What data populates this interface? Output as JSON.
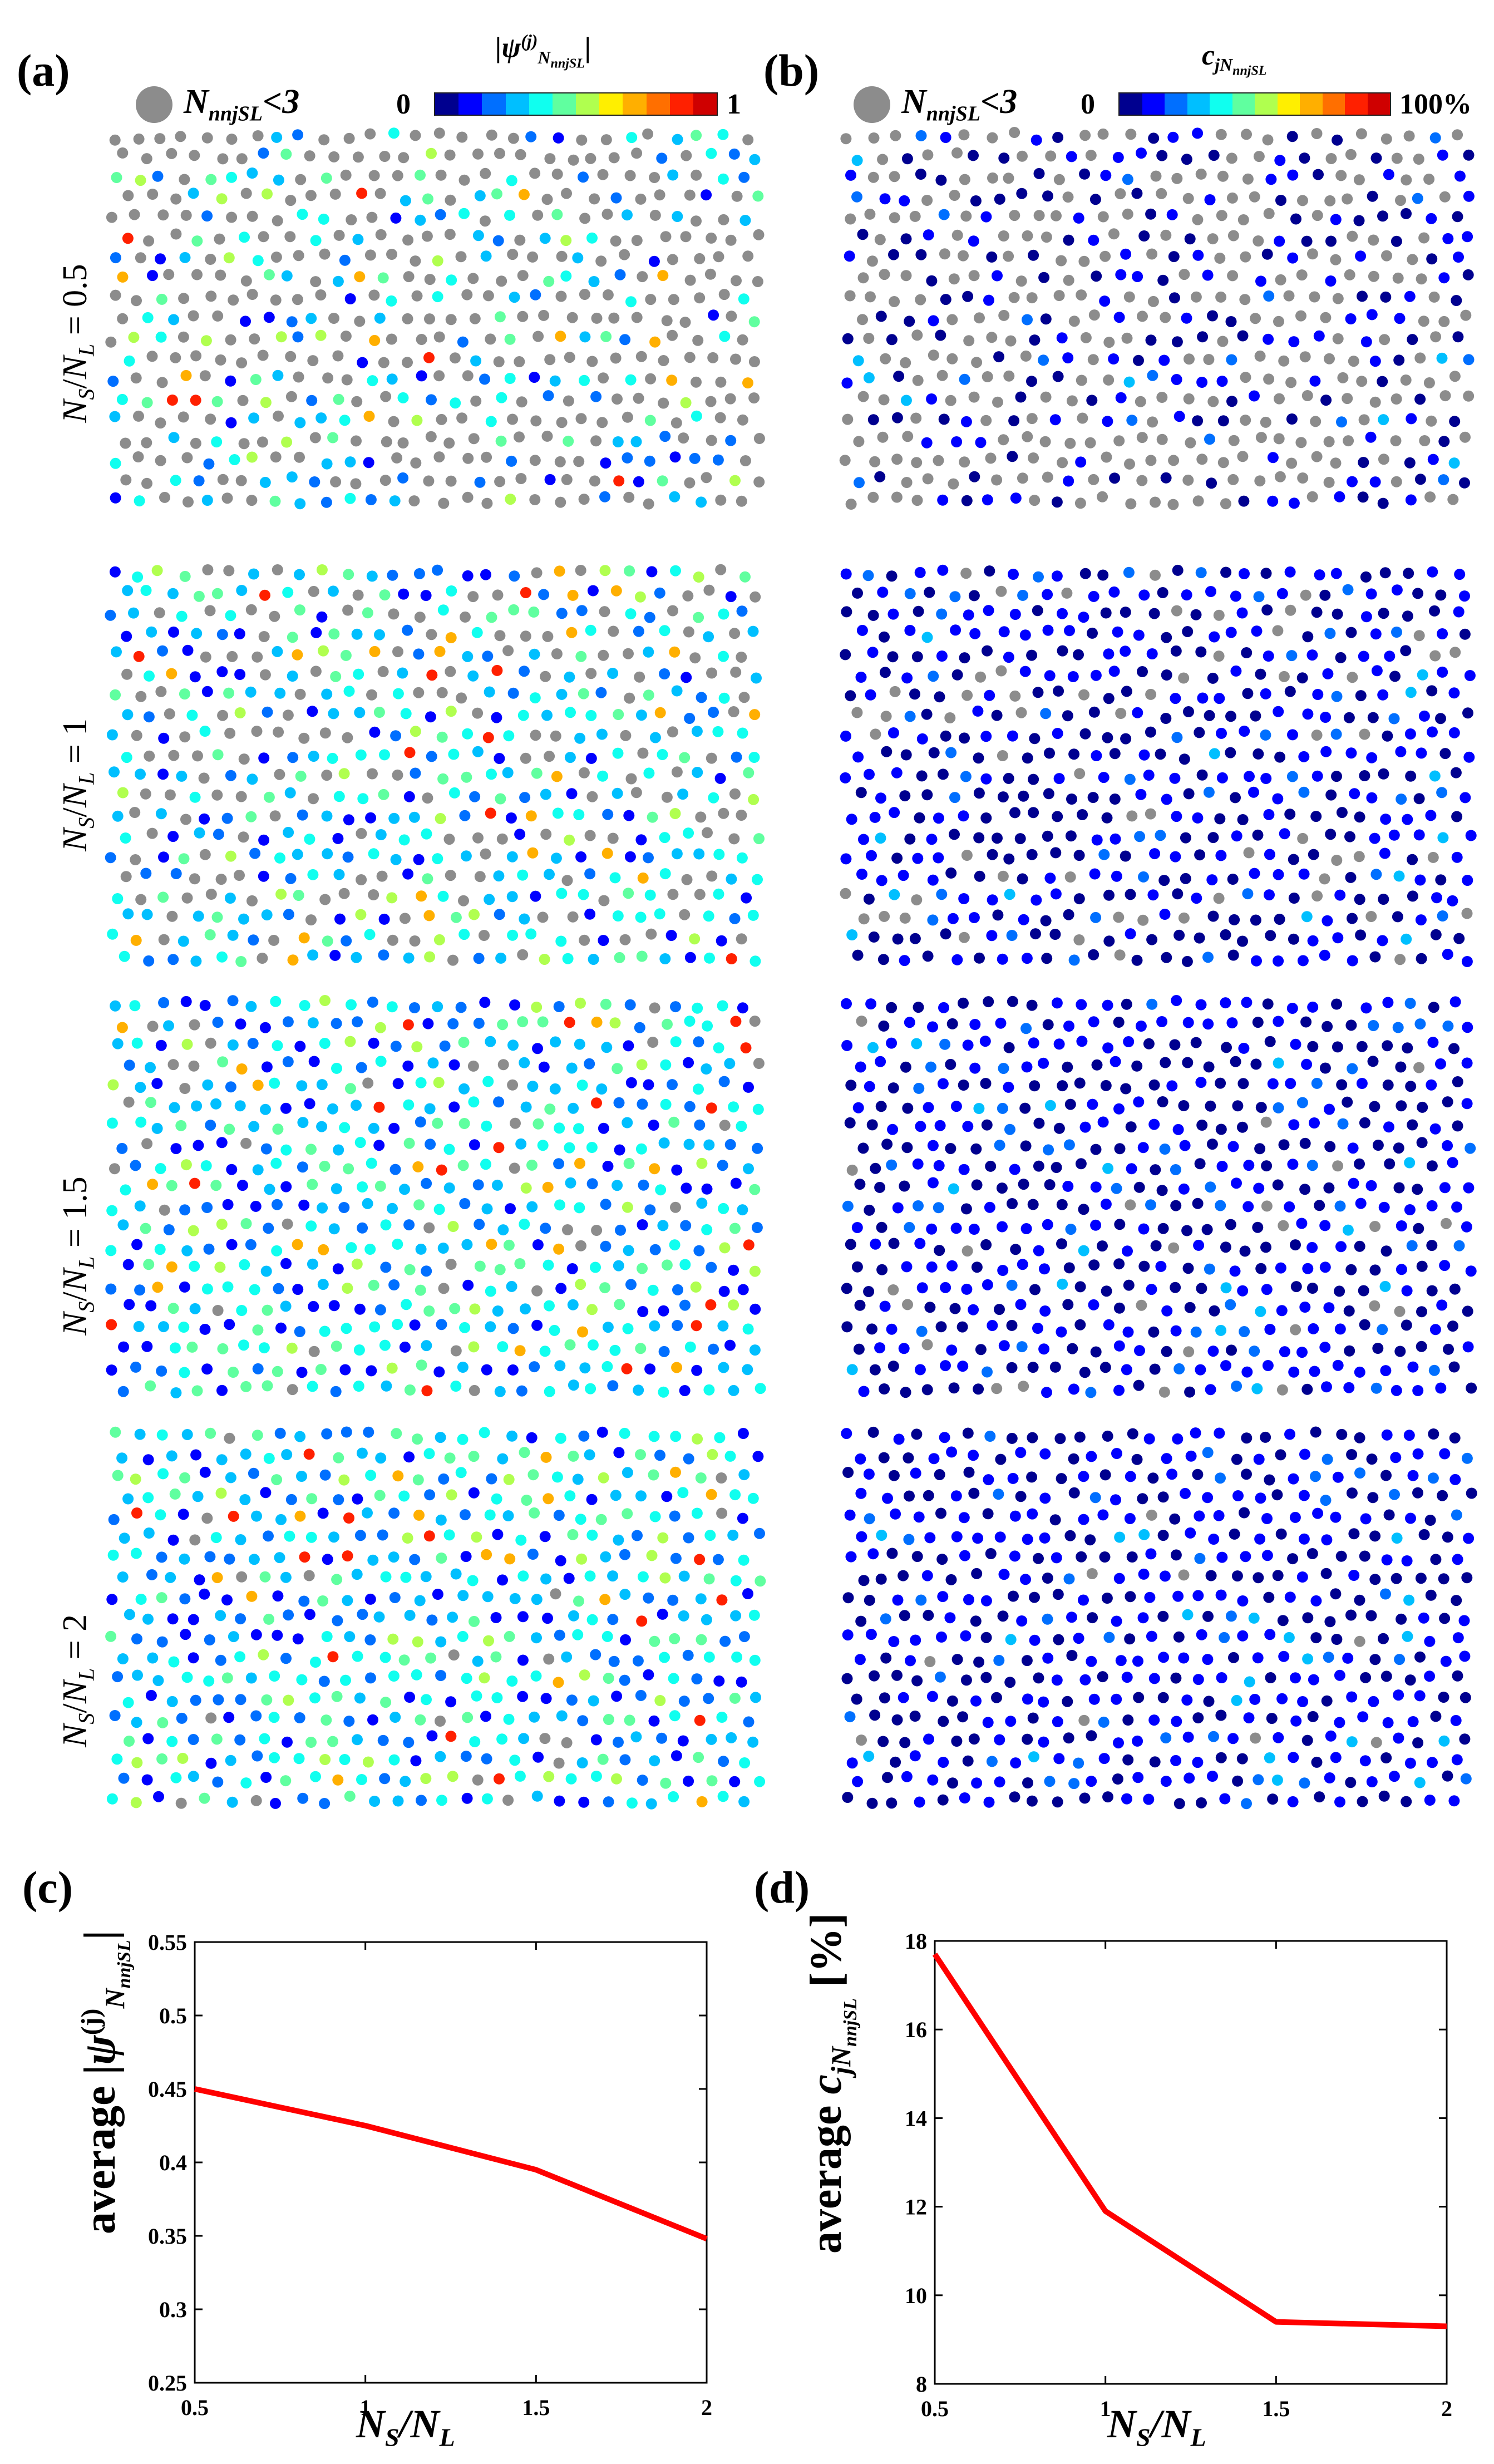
{
  "panels": {
    "a": {
      "label": "(a)"
    },
    "b": {
      "label": "(b)"
    },
    "c": {
      "label": "(c)"
    },
    "d": {
      "label": "(d)"
    }
  },
  "legend": {
    "main": "N",
    "sub": "nnjSL",
    "suffix": "<3",
    "color": "#8c8c8c"
  },
  "colorbar_a": {
    "title_psi": "|ψ",
    "title_sup": "(j)",
    "title_sub": "N",
    "title_subsub": "nnjSL",
    "title_end": "|",
    "min_label": "0",
    "max_label": "1"
  },
  "colorbar_b": {
    "title_main": "c",
    "title_sub": "jN",
    "title_subsub": "nnjSL",
    "min_label": "0",
    "max_label": "100%"
  },
  "colormap": [
    "#00008f",
    "#0000ff",
    "#006fff",
    "#00bfff",
    "#10ffef",
    "#60ff9f",
    "#b0ff4f",
    "#ffef00",
    "#ffaf00",
    "#ff6f00",
    "#ff2000",
    "#cf0000"
  ],
  "rows": [
    {
      "ratio_label": "= 0.5",
      "ratio": 0.5
    },
    {
      "ratio_label": "= 1",
      "ratio": 1
    },
    {
      "ratio_label": "= 1.5",
      "ratio": 1.5
    },
    {
      "ratio_label": "= 2",
      "ratio": 2
    }
  ],
  "row_label_prefix": {
    "a": "N",
    "a_sub": "S",
    "slash": "/",
    "b": "N",
    "b_sub": "L"
  },
  "chart_data": [
    {
      "type": "line",
      "panel": "(c)",
      "x": [
        0.5,
        1,
        1.5,
        2
      ],
      "series": [
        {
          "values": [
            0.45,
            0.425,
            0.395,
            0.348
          ],
          "color": "#ff0000"
        }
      ],
      "xlim": [
        0.5,
        2
      ],
      "ylim": [
        0.25,
        0.55
      ],
      "xticks": [
        "0.5",
        "1",
        "1.5",
        "2"
      ],
      "yticks": [
        "0.25",
        "0.3",
        "0.35",
        "0.4",
        "0.45",
        "0.5",
        "0.55"
      ],
      "xlabel": "N_S/N_L",
      "ylabel": "average |ψ^(j)_N_nnjSL|",
      "grid": false
    },
    {
      "type": "line",
      "panel": "(d)",
      "x": [
        0.5,
        1,
        1.5,
        2
      ],
      "series": [
        {
          "values": [
            17.7,
            11.9,
            9.4,
            9.3
          ],
          "color": "#ff0000"
        }
      ],
      "xlim": [
        0.5,
        2
      ],
      "ylim": [
        8,
        18
      ],
      "xticks": [
        "0.5",
        "1",
        "1.5",
        "2"
      ],
      "yticks": [
        "8",
        "10",
        "12",
        "14",
        "16",
        "18"
      ],
      "xlabel": "N_S/N_L",
      "ylabel": "average c_jN_nnjSL [%]",
      "grid": false
    }
  ],
  "axis_text": {
    "c_ylabel_word": "average",
    "c_ylabel_psi": "ψ",
    "c_ylabel_sup": "(j)",
    "c_ylabel_sub": "N",
    "c_ylabel_subsub": "nnjSL",
    "d_ylabel_word": "average",
    "d_ylabel_main": "c",
    "d_ylabel_sub": "jN",
    "d_ylabel_subsub": "nnjSL",
    "d_ylabel_unit": "[%]",
    "xlabel_a": "N",
    "xlabel_a_sub": "S",
    "xlabel_slash": "/",
    "xlabel_b": "N",
    "xlabel_b_sub": "L"
  }
}
